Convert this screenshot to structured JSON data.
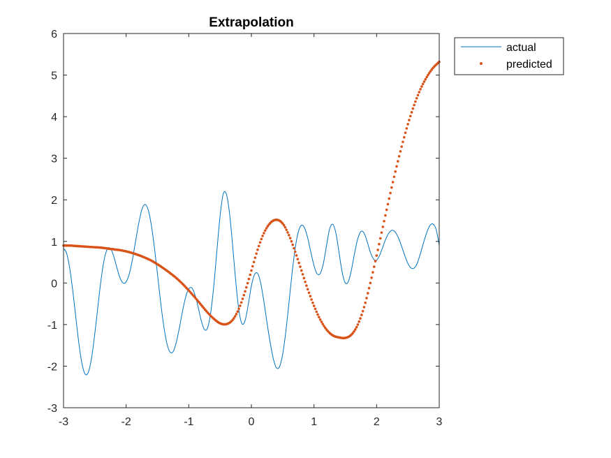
{
  "chart_data": {
    "type": "line",
    "title": "Extrapolation",
    "xlabel": "",
    "ylabel": "",
    "xlim": [
      -3,
      3
    ],
    "ylim": [
      -3,
      6
    ],
    "xticks": [
      "-3",
      "-2",
      "-1",
      "0",
      "1",
      "2",
      "3"
    ],
    "yticks": [
      "-3",
      "-2",
      "-1",
      "0",
      "1",
      "2",
      "3",
      "4",
      "5",
      "6"
    ],
    "grid": false,
    "legend_position": "outside-top-right",
    "series": [
      {
        "name": "actual",
        "style": "line",
        "color": "#0072BD",
        "x": [
          -3.0,
          -2.95,
          -2.9,
          -2.85,
          -2.8,
          -2.75,
          -2.7,
          -2.65,
          -2.6,
          -2.55,
          -2.5,
          -2.45,
          -2.4,
          -2.35,
          -2.3,
          -2.25,
          -2.2,
          -2.15,
          -2.1,
          -2.05,
          -2.0,
          -1.95,
          -1.9,
          -1.85,
          -1.8,
          -1.75,
          -1.7,
          -1.65,
          -1.6,
          -1.55,
          -1.5,
          -1.45,
          -1.4,
          -1.35,
          -1.3,
          -1.25,
          -1.2,
          -1.15,
          -1.1,
          -1.05,
          -1.0,
          -0.95,
          -0.9,
          -0.85,
          -0.8,
          -0.75,
          -0.7,
          -0.65,
          -0.6,
          -0.55,
          -0.5,
          -0.45,
          -0.4,
          -0.35,
          -0.3,
          -0.25,
          -0.2,
          -0.15,
          -0.1,
          -0.05,
          0.0,
          0.05,
          0.1,
          0.15,
          0.2,
          0.25,
          0.3,
          0.35,
          0.4,
          0.45,
          0.5,
          0.55,
          0.6,
          0.65,
          0.7,
          0.75,
          0.8,
          0.85,
          0.9,
          0.95,
          1.0,
          1.05,
          1.1,
          1.15,
          1.2,
          1.25,
          1.3,
          1.35,
          1.4,
          1.45,
          1.5,
          1.55,
          1.6,
          1.65,
          1.7,
          1.75,
          1.8,
          1.85,
          1.9,
          1.95,
          2.0,
          2.05,
          2.1,
          2.15,
          2.2,
          2.25,
          2.3,
          2.35,
          2.4,
          2.45,
          2.5,
          2.55,
          2.6,
          2.65,
          2.7,
          2.75,
          2.8,
          2.85,
          2.9,
          2.95,
          3.0
        ],
        "y": [
          0.83,
          0.71,
          0.34,
          -0.22,
          -0.88,
          -1.51,
          -1.98,
          -2.2,
          -2.13,
          -1.78,
          -1.21,
          -0.55,
          0.09,
          0.57,
          0.82,
          0.83,
          0.65,
          0.38,
          0.13,
          -0.0,
          0.03,
          0.22,
          0.56,
          1.0,
          1.43,
          1.76,
          1.89,
          1.77,
          1.41,
          0.87,
          0.22,
          -0.45,
          -1.03,
          -1.45,
          -1.66,
          -1.65,
          -1.43,
          -1.08,
          -0.68,
          -0.34,
          -0.14,
          -0.12,
          -0.29,
          -0.58,
          -0.91,
          -1.12,
          -1.08,
          -0.72,
          -0.06,
          0.79,
          1.61,
          2.14,
          2.14,
          1.69,
          0.91,
          0.04,
          -0.65,
          -0.98,
          -0.9,
          -0.52,
          -0.07,
          0.2,
          0.23,
          -0.01,
          -0.45,
          -0.96,
          -1.43,
          -1.82,
          -2.04,
          -2.01,
          -1.71,
          -1.17,
          -0.48,
          0.24,
          0.84,
          1.23,
          1.39,
          1.32,
          1.08,
          0.74,
          0.42,
          0.22,
          0.23,
          0.47,
          0.9,
          1.3,
          1.41,
          1.2,
          0.73,
          0.26,
          0.0,
          0.04,
          0.33,
          0.73,
          1.07,
          1.24,
          1.2,
          0.99,
          0.74,
          0.58,
          0.55,
          0.67,
          0.87,
          1.07,
          1.21,
          1.27,
          1.22,
          1.08,
          0.88,
          0.66,
          0.47,
          0.36,
          0.36,
          0.48,
          0.71,
          0.97,
          1.21,
          1.38,
          1.42,
          1.29,
          0.91
        ]
      },
      {
        "name": "predicted",
        "style": "markers",
        "color": "#D95319",
        "x": [
          -3.0,
          -2.9,
          -2.8,
          -2.7,
          -2.6,
          -2.5,
          -2.4,
          -2.3,
          -2.2,
          -2.1,
          -2.0,
          -1.9,
          -1.8,
          -1.7,
          -1.6,
          -1.5,
          -1.4,
          -1.3,
          -1.2,
          -1.1,
          -1.0,
          -0.9,
          -0.8,
          -0.7,
          -0.6,
          -0.5,
          -0.4,
          -0.3,
          -0.2,
          -0.1,
          0.0,
          0.1,
          0.2,
          0.3,
          0.4,
          0.5,
          0.6,
          0.7,
          0.8,
          0.9,
          1.0,
          1.1,
          1.2,
          1.3,
          1.4,
          1.5,
          1.6,
          1.7,
          1.8,
          1.9,
          2.0,
          2.1,
          2.2,
          2.3,
          2.4,
          2.5,
          2.6,
          2.7,
          2.8,
          2.9,
          3.0
        ],
        "y": [
          0.9,
          0.9,
          0.89,
          0.88,
          0.87,
          0.86,
          0.85,
          0.83,
          0.81,
          0.79,
          0.76,
          0.72,
          0.67,
          0.61,
          0.54,
          0.45,
          0.35,
          0.24,
          0.12,
          -0.02,
          -0.18,
          -0.35,
          -0.53,
          -0.71,
          -0.86,
          -0.97,
          -0.99,
          -0.89,
          -0.62,
          -0.2,
          0.3,
          0.8,
          1.2,
          1.44,
          1.52,
          1.43,
          1.15,
          0.75,
          0.3,
          -0.15,
          -0.55,
          -0.88,
          -1.12,
          -1.26,
          -1.31,
          -1.32,
          -1.24,
          -1.0,
          -0.58,
          0.0,
          0.66,
          1.35,
          2.03,
          2.68,
          3.28,
          3.82,
          4.28,
          4.66,
          4.95,
          5.17,
          5.32
        ]
      }
    ]
  }
}
